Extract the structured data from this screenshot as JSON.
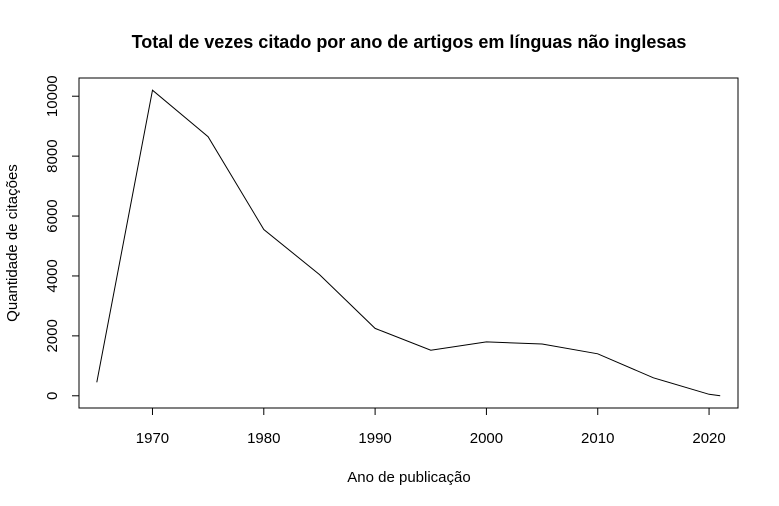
{
  "chart_data": {
    "type": "line",
    "title": "Total de vezes citado por ano de artigos em línguas não inglesas",
    "xlabel": "Ano de publicação",
    "ylabel": "Quantidade de citações",
    "x": [
      1965,
      1970,
      1975,
      1980,
      1985,
      1990,
      1995,
      2000,
      2005,
      2010,
      2015,
      2020,
      2021
    ],
    "series": [
      {
        "values": [
          450,
          10200,
          8650,
          5550,
          4050,
          2250,
          1520,
          1800,
          1730,
          1400,
          600,
          50,
          0
        ]
      }
    ],
    "xlim": [
      1963.4,
      2022.6
    ],
    "ylim": [
      -408,
      10608
    ],
    "xticks": [
      "1970",
      "1980",
      "1990",
      "2000",
      "2010",
      "2020"
    ],
    "yticks": [
      "0",
      "2000",
      "4000",
      "6000",
      "8000",
      "10000"
    ],
    "line_color": "#000000",
    "grid": false,
    "legend": "none"
  }
}
